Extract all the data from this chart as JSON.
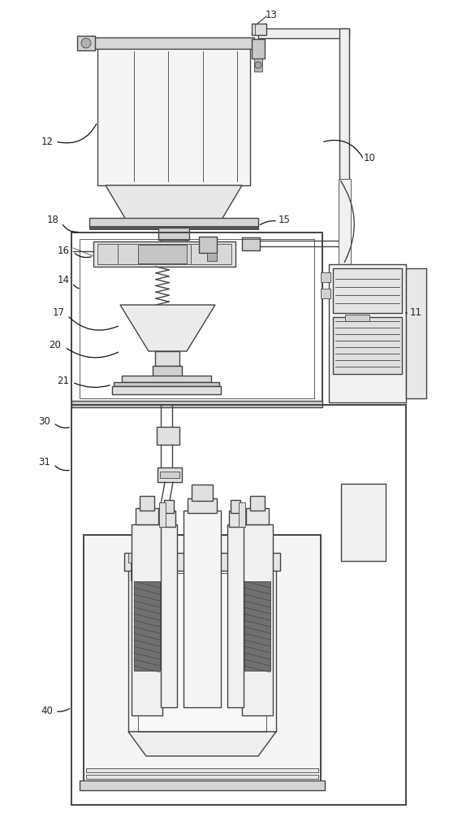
{
  "figure_width": 5.69,
  "figure_height": 10.0,
  "dpi": 100,
  "bg_color": "#ffffff",
  "line_color": "#444444",
  "dark_fill": "#606060",
  "hatch_fill": "#555555"
}
